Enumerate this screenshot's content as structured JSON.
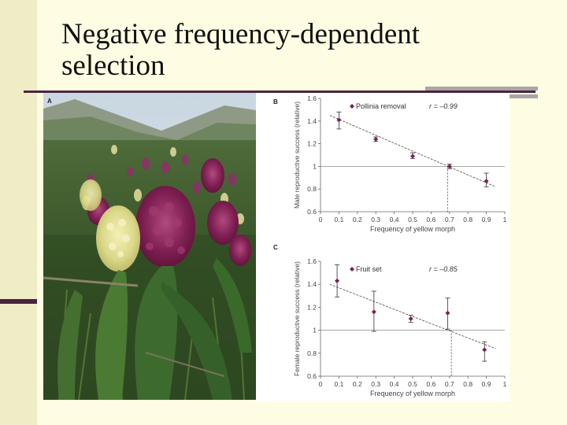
{
  "slide": {
    "title_line1": "Negative frequency-dependent",
    "title_line2": "selection"
  },
  "panels": {
    "photo_label": "A"
  },
  "chart_data": [
    {
      "panel": "B",
      "type": "scatter",
      "xlabel": "Frequency of yellow morph",
      "ylabel": "Male reproductive success (relative)",
      "xlim": [
        0,
        1
      ],
      "ylim": [
        0.6,
        1.6
      ],
      "xticks": [
        "0",
        "0.1",
        "0.2",
        "0.3",
        "0.4",
        "0.5",
        "0.6",
        "0.7",
        "0.8",
        "0.9",
        "1"
      ],
      "yticks": [
        "0.6",
        "0.8",
        "1",
        "1.2",
        "1.4",
        "1.6"
      ],
      "legend": {
        "label": "Pollinia removal",
        "stat": "r = –0.99"
      },
      "points": [
        {
          "x": 0.1,
          "y": 1.41,
          "lo": 1.33,
          "hi": 1.48
        },
        {
          "x": 0.3,
          "y": 1.24,
          "lo": 1.22,
          "hi": 1.26
        },
        {
          "x": 0.5,
          "y": 1.09,
          "lo": 1.07,
          "hi": 1.12
        },
        {
          "x": 0.7,
          "y": 1.0,
          "lo": 0.98,
          "hi": 1.02
        },
        {
          "x": 0.9,
          "y": 0.87,
          "lo": 0.82,
          "hi": 0.94
        }
      ],
      "fit": {
        "x1": 0.05,
        "y1": 1.45,
        "x2": 0.95,
        "y2": 0.82
      },
      "reference_y": 1,
      "equilibrium_x": 0.69
    },
    {
      "panel": "C",
      "type": "scatter",
      "xlabel": "Frequency of yellow morph",
      "ylabel": "Female reproductive success (relative)",
      "xlim": [
        0,
        1
      ],
      "ylim": [
        0.6,
        1.6
      ],
      "xticks": [
        "0",
        "0.1",
        "0.2",
        "0.3",
        "0.4",
        "0.5",
        "0.6",
        "0.7",
        "0.8",
        "0.9",
        "1"
      ],
      "yticks": [
        "0.6",
        "0.8",
        "1",
        "1.2",
        "1.4",
        "1.6"
      ],
      "legend": {
        "label": "Fruit set",
        "stat": "r = –0.85"
      },
      "points": [
        {
          "x": 0.09,
          "y": 1.43,
          "lo": 1.29,
          "hi": 1.57
        },
        {
          "x": 0.29,
          "y": 1.16,
          "lo": 0.99,
          "hi": 1.34
        },
        {
          "x": 0.49,
          "y": 1.1,
          "lo": 1.07,
          "hi": 1.13
        },
        {
          "x": 0.69,
          "y": 1.15,
          "lo": 1.01,
          "hi": 1.28
        },
        {
          "x": 0.89,
          "y": 0.83,
          "lo": 0.73,
          "hi": 0.9
        }
      ],
      "fit": {
        "x1": 0.05,
        "y1": 1.4,
        "x2": 0.95,
        "y2": 0.84
      },
      "reference_y": 1,
      "equilibrium_x": 0.71
    }
  ]
}
